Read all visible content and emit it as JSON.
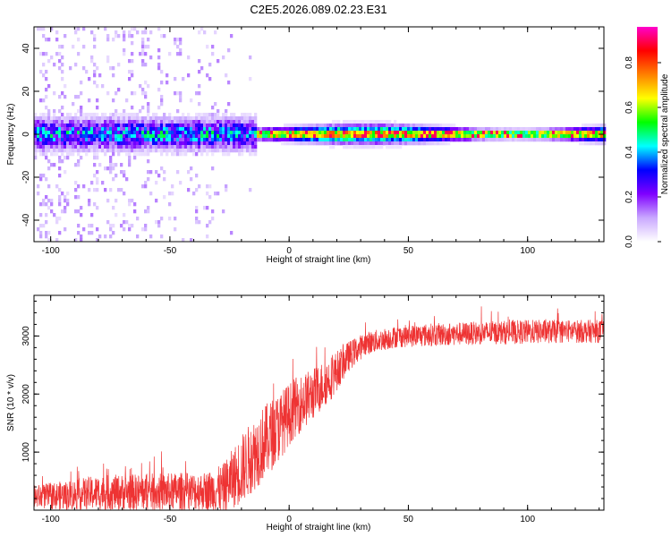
{
  "figure_title": "C2E5.2026.089.02.23.E31",
  "chart_data": [
    {
      "type": "heatmap",
      "title": "C2E5.2026.089.02.23.E31",
      "xlabel": "Height of straight line (km)",
      "ylabel": "Frequency (Hz)",
      "xlim": [
        -107,
        132
      ],
      "ylim": [
        -50,
        50
      ],
      "xticks": [
        -100,
        -50,
        0,
        50,
        100
      ],
      "yticks": [
        -40,
        -20,
        0,
        20,
        40
      ],
      "colorbar": {
        "label": "Normalized spectral amplitude",
        "range": [
          0,
          0.96
        ],
        "ticks": [
          0.0,
          0.2,
          0.4,
          0.6,
          0.8
        ],
        "colormap": [
          "#ffffff",
          "#c9a8ff",
          "#7f00ff",
          "#0000ff",
          "#00ffff",
          "#00ff00",
          "#ffff00",
          "#ff8000",
          "#ff0000",
          "#ff00cc"
        ]
      },
      "description_values": {
        "noise_region_km": [
          -107,
          -14
        ],
        "band_center_hz": 0,
        "band_halfwidth_hz_noisy": 6,
        "band_halfwidth_hz_stable": 3,
        "peak_amplitude": 0.9
      }
    },
    {
      "type": "line",
      "xlabel": "Height of straight line (km)",
      "ylabel": "SNR (10 * v/v)",
      "xlim": [
        -107,
        132
      ],
      "ylim": [
        0,
        3700
      ],
      "xticks": [
        -100,
        -50,
        0,
        50,
        100
      ],
      "yticks": [
        1000,
        2000,
        3000
      ],
      "series": [
        {
          "name": "SNR",
          "color": "#ee3333",
          "profile_x": [
            -107,
            -95,
            -80,
            -60,
            -45,
            -35,
            -28,
            -20,
            -12,
            -5,
            2,
            10,
            18,
            25,
            32,
            45,
            60,
            80,
            100,
            115,
            132
          ],
          "profile_mean": [
            230,
            250,
            300,
            310,
            320,
            330,
            360,
            700,
            1100,
            1400,
            1750,
            2000,
            2300,
            2650,
            2870,
            2990,
            3020,
            3050,
            3070,
            3080,
            3080
          ],
          "profile_spread": [
            200,
            250,
            300,
            320,
            330,
            330,
            420,
            600,
            650,
            600,
            520,
            450,
            380,
            260,
            200,
            190,
            200,
            200,
            210,
            200,
            200
          ]
        }
      ]
    }
  ]
}
